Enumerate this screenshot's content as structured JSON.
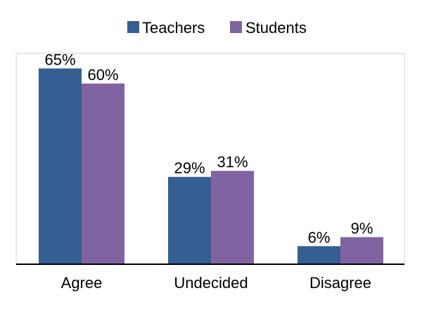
{
  "chart_data": {
    "type": "bar",
    "categories": [
      "Agree",
      "Undecided",
      "Disagree"
    ],
    "series": [
      {
        "name": "Teachers",
        "values": [
          65,
          29,
          6
        ],
        "color": "#355E92"
      },
      {
        "name": "Students",
        "values": [
          60,
          31,
          9
        ],
        "color": "#8064A2"
      }
    ],
    "data_labels": [
      [
        "65%",
        "29%",
        "6%"
      ],
      [
        "60%",
        "31%",
        "9%"
      ]
    ],
    "ylim": [
      0,
      70
    ],
    "value_unit": "%",
    "legend_position": "top-center",
    "grid": false
  }
}
